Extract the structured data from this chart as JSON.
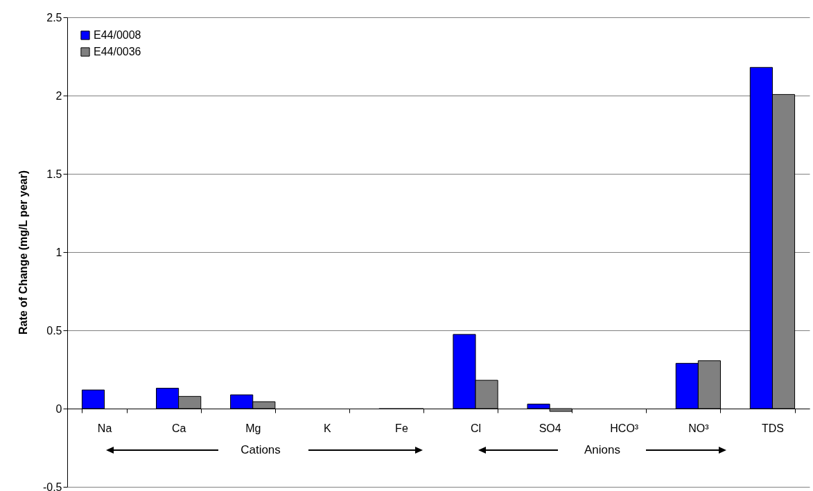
{
  "chart_data": {
    "type": "bar",
    "ylabel": "Rate of Change (mg/L per year)",
    "categories": [
      "Na",
      "Ca",
      "Mg",
      "K",
      "Fe",
      "Cl",
      "SO4",
      "HCO³",
      "NO³",
      "TDS"
    ],
    "series": [
      {
        "name": "E44/0008",
        "color": "#0000ff",
        "values": [
          0.119,
          0.13,
          0.088,
          null,
          -0.002,
          0.474,
          0.029,
          null,
          0.289,
          2.18
        ]
      },
      {
        "name": "E44/0036",
        "color": "#808080",
        "values": [
          null,
          0.078,
          0.044,
          null,
          -0.002,
          0.181,
          -0.018,
          null,
          0.306,
          2.007
        ]
      }
    ],
    "ylim": [
      -0.5,
      2.5
    ],
    "yticks": [
      -0.5,
      0,
      0.5,
      1,
      1.5,
      2,
      2.5
    ],
    "grid": "y",
    "legend": "top left",
    "annotations": [
      "Cations",
      "Anions"
    ]
  }
}
